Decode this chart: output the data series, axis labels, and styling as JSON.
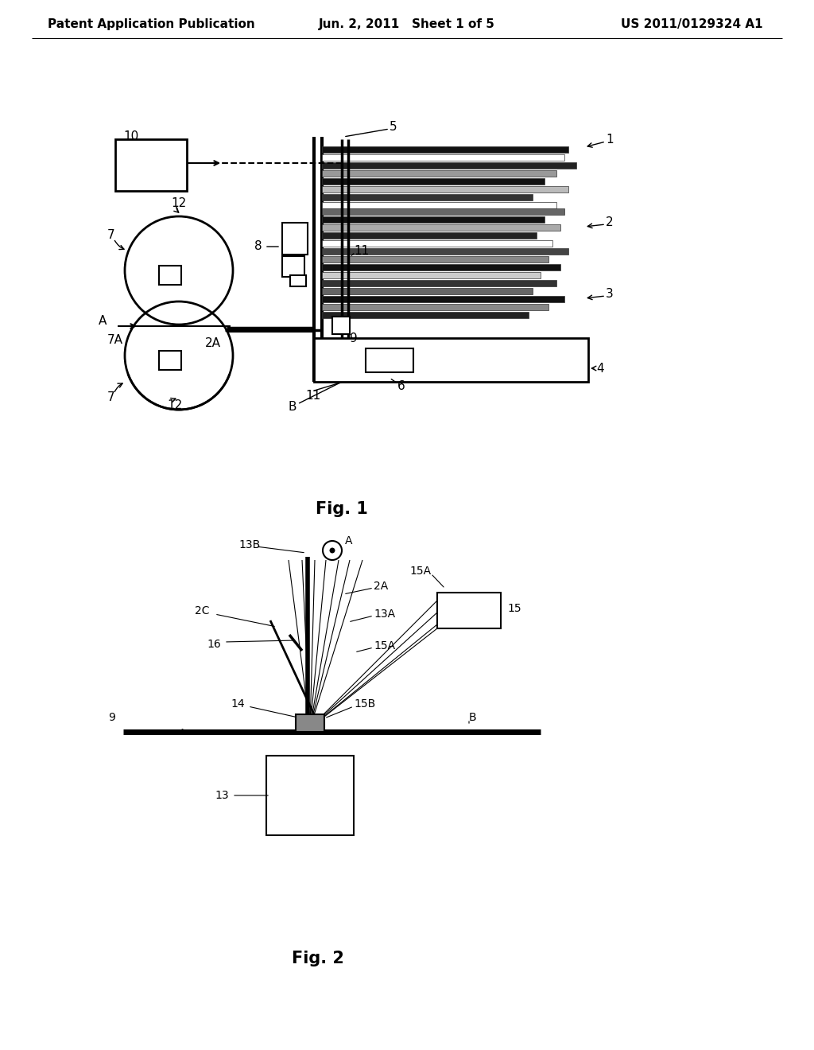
{
  "header_left": "Patent Application Publication",
  "header_center": "Jun. 2, 2011   Sheet 1 of 5",
  "header_right": "US 2011/0129324 A1",
  "fig1_caption": "Fig. 1",
  "fig2_caption": "Fig. 2",
  "background": "#ffffff"
}
